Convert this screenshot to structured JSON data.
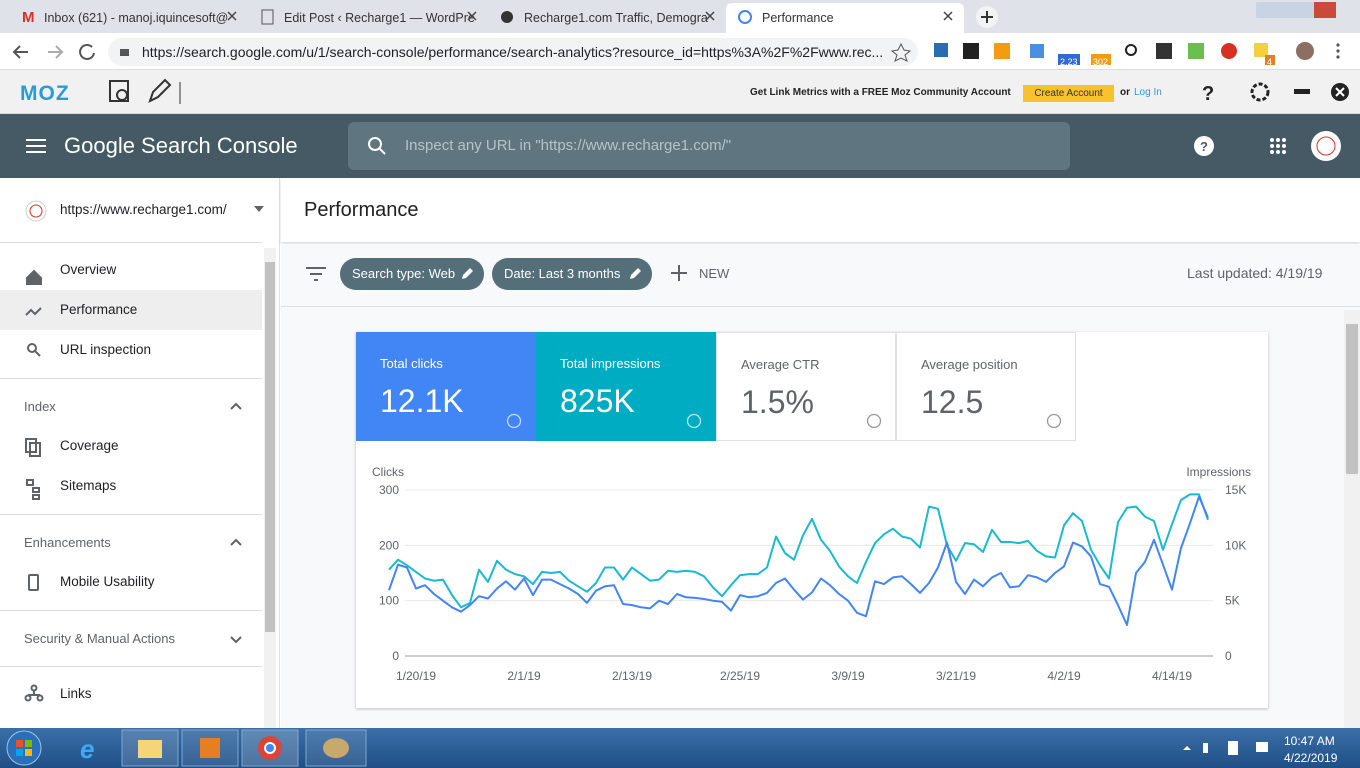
{
  "browser": {
    "tabs": [
      "Inbox (621) - manoj.iquincesoft@",
      "Edit Post ‹ Recharge1 — WordPre",
      "Recharge1.com Traffic, Demogra",
      "Performance"
    ],
    "url": "https://search.google.com/u/1/search-console/performance/search-analytics?resource_id=https%3A%2F%2Fwww.rec...",
    "badges": [
      "2.23",
      "302",
      "4"
    ]
  },
  "moz": {
    "logo": "MOZ",
    "promo": "Get Link Metrics with a FREE Moz Community Account",
    "button": "Create Account",
    "or": "or",
    "login": "Log In"
  },
  "header": {
    "title": "Google Search Console",
    "search": "Inspect any URL in \"https://www.recharge1.com/\""
  },
  "sidebar": {
    "property": "https://www.recharge1.com/",
    "items": [
      "Overview",
      "Performance",
      "URL inspection"
    ],
    "index": {
      "title": "Index",
      "items": [
        "Coverage",
        "Sitemaps"
      ]
    },
    "enhancements": {
      "title": "Enhancements",
      "items": [
        "Mobile Usability"
      ]
    },
    "security": "Security & Manual Actions",
    "links": "Links"
  },
  "main": {
    "title": "Performance",
    "filters": [
      "Search type: Web",
      "Date: Last 3 months"
    ],
    "new": "NEW",
    "updated": "Last updated: 4/19/19"
  },
  "metrics": [
    {
      "label": "Total clicks",
      "value": "12.1K"
    },
    {
      "label": "Total impressions",
      "value": "825K"
    },
    {
      "label": "Average CTR",
      "value": "1.5%"
    },
    {
      "label": "Average position",
      "value": "12.5"
    }
  ],
  "chart_data": {
    "type": "line",
    "y_label": "Clicks",
    "y2_label": "Impressions",
    "categories": [
      null,
      null,
      null,
      "1/20/19",
      null,
      null,
      null,
      null,
      null,
      null,
      null,
      null,
      null,
      null,
      null,
      "2/1/19",
      null,
      null,
      null,
      null,
      null,
      null,
      null,
      null,
      null,
      null,
      null,
      "2/13/19",
      null,
      null,
      null,
      null,
      null,
      null,
      null,
      null,
      null,
      null,
      null,
      "2/25/19",
      null,
      null,
      null,
      null,
      null,
      null,
      null,
      null,
      null,
      null,
      null,
      "3/9/19",
      null,
      null,
      null,
      null,
      null,
      null,
      null,
      null,
      null,
      null,
      null,
      "3/21/19",
      null,
      null,
      null,
      null,
      null,
      null,
      null,
      null,
      null,
      null,
      null,
      "4/2/19",
      null,
      null,
      null,
      null,
      null,
      null,
      null,
      null,
      null,
      null,
      null,
      "4/14/19",
      null,
      null,
      null,
      null
    ],
    "series": [
      {
        "name": "Clicks",
        "color": "#4285f4",
        "values": [
          119,
          165,
          160,
          122,
          128,
          112,
          100,
          88,
          80,
          92,
          108,
          104,
          122,
          135,
          120,
          140,
          110,
          138,
          138,
          130,
          122,
          112,
          96,
          118,
          126,
          128,
          94,
          92,
          88,
          86,
          100,
          94,
          112,
          106,
          105,
          103,
          100,
          98,
          82,
          110,
          106,
          108,
          114,
          132,
          140,
          120,
          102,
          115,
          140,
          128,
          112,
          100,
          78,
          72,
          135,
          130,
          142,
          144,
          130,
          114,
          132,
          160,
          205,
          134,
          112,
          138,
          126,
          142,
          150,
          124,
          126,
          146,
          142,
          134,
          150,
          162,
          205,
          198,
          180,
          130,
          125,
          92,
          56,
          150,
          170,
          210,
          165,
          120,
          195,
          240,
          288,
          250
        ]
      },
      {
        "name": "Impressions",
        "color": "#1ab9cf",
        "axis": "y2",
        "values": [
          7800,
          8700,
          8200,
          7600,
          7000,
          6800,
          6900,
          5500,
          4400,
          4800,
          7800,
          6700,
          8600,
          7800,
          7400,
          7200,
          6500,
          7600,
          7500,
          7600,
          6800,
          6300,
          5800,
          6600,
          8000,
          8000,
          6900,
          8000,
          7400,
          6800,
          6900,
          7700,
          7600,
          7700,
          7600,
          7200,
          6200,
          5400,
          6400,
          7300,
          7400,
          7400,
          8000,
          10800,
          9300,
          8700,
          10900,
          12400,
          10500,
          9500,
          8100,
          7200,
          6600,
          8500,
          10200,
          11000,
          11500,
          10800,
          10600,
          9800,
          13500,
          13300,
          10000,
          8600,
          10200,
          10100,
          9400,
          11400,
          10300,
          10300,
          10200,
          10400,
          9500,
          9000,
          8900,
          11800,
          12900,
          12200,
          9600,
          8200,
          7000,
          12100,
          13400,
          13500,
          12600,
          12200,
          9600,
          11900,
          14100,
          14600,
          14600,
          12300
        ]
      }
    ],
    "ylim": [
      0,
      300
    ],
    "yticks": [
      0,
      100,
      200,
      300
    ],
    "y2lim": [
      0,
      15000
    ],
    "y2ticks": [
      0,
      {
        "value": 5000,
        "label": "5K"
      },
      {
        "value": 10000,
        "label": "10K"
      },
      {
        "value": 15000,
        "label": "15K"
      }
    ],
    "grid": true
  },
  "taskbar": {
    "time": "10:47 AM",
    "date": "4/22/2019"
  }
}
